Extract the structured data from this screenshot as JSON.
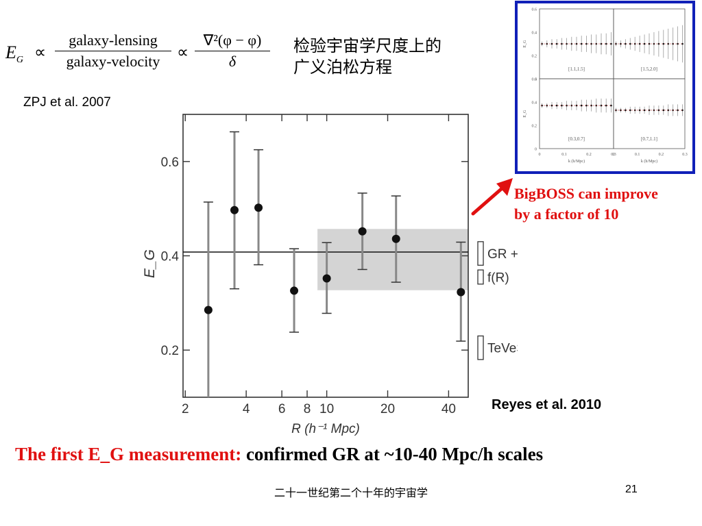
{
  "formula": {
    "lhs_main": "E",
    "lhs_sub": "G",
    "prop": "∝",
    "frac1_num": "galaxy-lensing",
    "frac1_den": "galaxy-velocity",
    "frac2_num": "∇²(φ − φ)",
    "frac2_den": "δ"
  },
  "cn_title_line1": "检验宇宙学尺度上的",
  "cn_title_line2": "广义泊松方程",
  "zpj_ref": "ZPJ et al. 2007",
  "bigboss_line1": "BigBOSS can improve",
  "bigboss_line2": "by a factor of 10",
  "reyes_ref": "Reyes et al. 2010",
  "conclusion_red": "The first E_G measurement:",
  "conclusion_black": " confirmed  GR at ~10-40 Mpc/h scales",
  "footer_text": "二十一世纪第二个十年的宇宙学",
  "page_number": "21",
  "colors": {
    "accent_red": "#e01010",
    "inset_border": "#1020b8",
    "band_gray": "#d4d4d4"
  },
  "chart_data": [
    {
      "type": "scatter",
      "title": "",
      "xlabel": "R (h⁻¹ Mpc)",
      "ylabel": "E_G",
      "xscale": "log",
      "xlim": [
        1.95,
        50
      ],
      "ylim": [
        0.1,
        0.7
      ],
      "x_ticks": [
        2,
        4,
        6,
        8,
        10,
        20,
        40
      ],
      "x_tick_labels": [
        "2",
        "4",
        "6",
        "8",
        "10",
        "20",
        "40"
      ],
      "y_ticks": [
        0.2,
        0.4,
        0.6
      ],
      "y_tick_labels": [
        "0.2",
        "0.4",
        "0.6"
      ],
      "reference_line": 0.408,
      "band": {
        "x_range": [
          9,
          50
        ],
        "y_range": [
          0.327,
          0.457
        ]
      },
      "points": [
        {
          "x": 2.6,
          "y": 0.285,
          "yerr_lo": 0.185,
          "yerr_hi": 0.229
        },
        {
          "x": 3.5,
          "y": 0.497,
          "yerr_lo": 0.167,
          "yerr_hi": 0.166
        },
        {
          "x": 4.6,
          "y": 0.502,
          "yerr_lo": 0.121,
          "yerr_hi": 0.123
        },
        {
          "x": 6.9,
          "y": 0.326,
          "yerr_lo": 0.088,
          "yerr_hi": 0.089
        },
        {
          "x": 10.0,
          "y": 0.352,
          "yerr_lo": 0.074,
          "yerr_hi": 0.076
        },
        {
          "x": 15.0,
          "y": 0.452,
          "yerr_lo": 0.081,
          "yerr_hi": 0.081
        },
        {
          "x": 22.0,
          "y": 0.436,
          "yerr_lo": 0.092,
          "yerr_hi": 0.091
        },
        {
          "x": 46.0,
          "y": 0.323,
          "yerr_lo": 0.104,
          "yerr_hi": 0.106
        }
      ],
      "side_legend": [
        {
          "label": "GR + ΛCDM",
          "y_range": [
            0.38,
            0.43
          ]
        },
        {
          "label": "f(R)",
          "y_range": [
            0.34,
            0.37
          ]
        },
        {
          "label": "TeVeS",
          "y_range": [
            0.18,
            0.23
          ]
        }
      ]
    },
    {
      "type": "scatter",
      "title": "",
      "xlabel": "k (h/Mpc)",
      "ylabel": "E_G",
      "panels": [
        {
          "label": "[1.1,1.5]",
          "y": 0.3,
          "xlim": [
            0,
            0.3
          ],
          "ylim": [
            0,
            0.6
          ],
          "x": [
            0.01,
            0.03,
            0.05,
            0.07,
            0.09,
            0.11,
            0.13,
            0.15,
            0.17,
            0.19,
            0.21,
            0.23,
            0.25,
            0.27,
            0.29
          ],
          "err": [
            0.02,
            0.03,
            0.04,
            0.04,
            0.05,
            0.05,
            0.06,
            0.06,
            0.07,
            0.07,
            0.08,
            0.08,
            0.09,
            0.09,
            0.1
          ]
        },
        {
          "label": "[1.5,2.0]",
          "y": 0.3,
          "xlim": [
            0,
            0.3
          ],
          "ylim": [
            0,
            0.6
          ],
          "x": [
            0.01,
            0.03,
            0.05,
            0.07,
            0.09,
            0.11,
            0.13,
            0.15,
            0.17,
            0.19,
            0.21,
            0.23,
            0.25,
            0.27,
            0.29
          ],
          "err": [
            0.02,
            0.03,
            0.04,
            0.05,
            0.06,
            0.07,
            0.08,
            0.09,
            0.1,
            0.11,
            0.12,
            0.13,
            0.14,
            0.15,
            0.16
          ]
        },
        {
          "label": "[0.3,0.7]",
          "y": 0.37,
          "xlim": [
            0,
            0.3
          ],
          "ylim": [
            0,
            0.6
          ],
          "x": [
            0.01,
            0.03,
            0.05,
            0.07,
            0.09,
            0.11,
            0.13,
            0.15,
            0.17,
            0.19,
            0.21,
            0.23,
            0.25,
            0.27,
            0.29
          ],
          "err": [
            0.02,
            0.02,
            0.03,
            0.03,
            0.03,
            0.04,
            0.04,
            0.04,
            0.05,
            0.05,
            0.05,
            0.06,
            0.06,
            0.06,
            0.06
          ]
        },
        {
          "label": "[0.7,1.1]",
          "y": 0.33,
          "xlim": [
            0,
            0.3
          ],
          "ylim": [
            0,
            0.6
          ],
          "x": [
            0.01,
            0.03,
            0.05,
            0.07,
            0.09,
            0.11,
            0.13,
            0.15,
            0.17,
            0.19,
            0.21,
            0.23,
            0.25,
            0.27,
            0.29
          ],
          "err": [
            0.02,
            0.02,
            0.02,
            0.03,
            0.03,
            0.03,
            0.03,
            0.04,
            0.04,
            0.04,
            0.04,
            0.05,
            0.05,
            0.05,
            0.05
          ]
        }
      ],
      "y_ticks": [
        0,
        0.2,
        0.4,
        0.6
      ],
      "y_tick_labels": [
        "0",
        "0.2",
        "0.4",
        "0.6"
      ],
      "x_ticks": [
        0,
        0.1,
        0.2,
        0.3
      ],
      "x_tick_labels": [
        "0",
        "0.1",
        "0.2",
        "0.3"
      ]
    }
  ]
}
